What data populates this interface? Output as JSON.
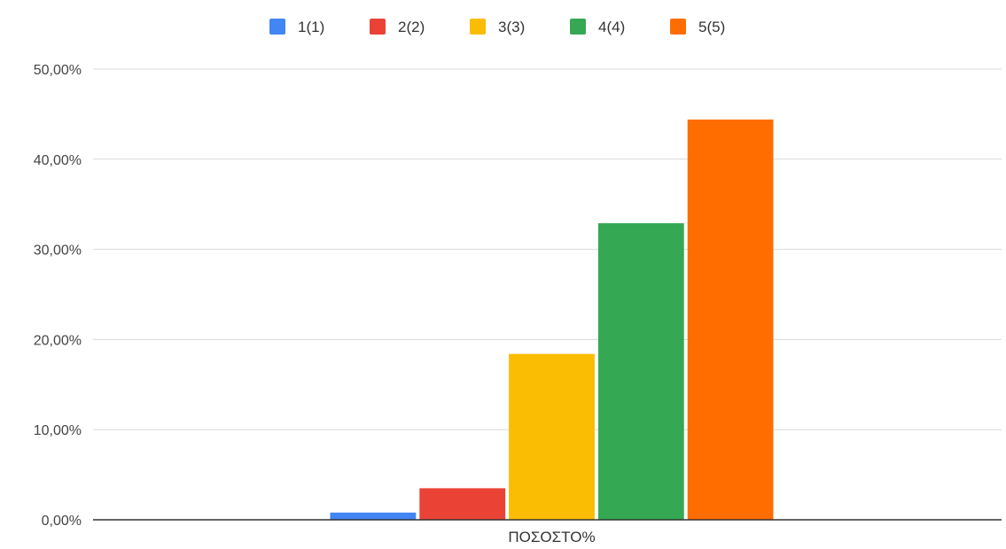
{
  "chart_data": {
    "type": "bar",
    "title": "",
    "xlabel": "",
    "ylabel": "",
    "categories": [
      "ΠΟΣΟΣΤΟ%"
    ],
    "series": [
      {
        "name": "1(1)",
        "values": [
          0.8
        ],
        "color": "#4285f4"
      },
      {
        "name": "2(2)",
        "values": [
          3.5
        ],
        "color": "#ea4335"
      },
      {
        "name": "3(3)",
        "values": [
          18.4
        ],
        "color": "#fbbc04"
      },
      {
        "name": "4(4)",
        "values": [
          32.9
        ],
        "color": "#34a853"
      },
      {
        "name": "5(5)",
        "values": [
          44.4
        ],
        "color": "#ff6d01"
      }
    ],
    "ylim": [
      0,
      50
    ],
    "yticks": [
      0,
      10,
      20,
      30,
      40,
      50
    ],
    "ytick_labels": [
      "0,00%",
      "10,00%",
      "20,00%",
      "30,00%",
      "40,00%",
      "50,00%"
    ],
    "grid": true,
    "legend_position": "top"
  }
}
